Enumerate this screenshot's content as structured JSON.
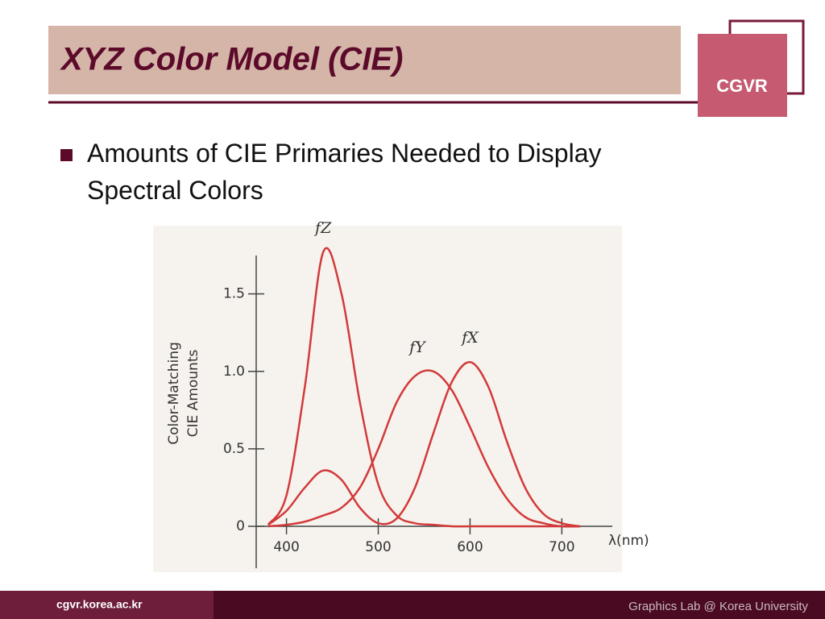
{
  "header": {
    "title": "XYZ Color Model (CIE)",
    "logo": "CGVR"
  },
  "bullets": [
    "Amounts of CIE Primaries Needed to Display Spectral Colors"
  ],
  "chart_data": {
    "type": "line",
    "x": [
      380,
      400,
      420,
      440,
      460,
      480,
      500,
      520,
      540,
      560,
      580,
      600,
      620,
      640,
      660,
      680,
      700,
      720
    ],
    "series": [
      {
        "name": "fZ",
        "color": "#d23a3a",
        "values": [
          0.01,
          0.2,
          0.9,
          1.77,
          1.5,
          0.8,
          0.27,
          0.07,
          0.02,
          0.01,
          0,
          0,
          0,
          0,
          0,
          0,
          0,
          0
        ]
      },
      {
        "name": "fY",
        "color": "#d23a3a",
        "values": [
          0,
          0.01,
          0.03,
          0.07,
          0.12,
          0.25,
          0.5,
          0.8,
          0.97,
          1.0,
          0.88,
          0.64,
          0.38,
          0.18,
          0.06,
          0.02,
          0,
          0
        ]
      },
      {
        "name": "fX",
        "color": "#d23a3a",
        "values": [
          0.01,
          0.1,
          0.25,
          0.36,
          0.3,
          0.12,
          0.02,
          0.05,
          0.25,
          0.6,
          0.93,
          1.06,
          0.9,
          0.55,
          0.25,
          0.08,
          0.02,
          0
        ]
      }
    ],
    "xlim": [
      367,
      755
    ],
    "ylim": [
      0,
      1.8
    ],
    "xticks": [
      400,
      500,
      600,
      700
    ],
    "yticks": [
      0,
      0.5,
      {
        "value": 1,
        "label": "1.0"
      },
      1.5
    ],
    "xlabel": "λ(nm)",
    "ylabel": [
      "Color-Matching",
      "CIE Amounts"
    ]
  },
  "footer": {
    "left": "cgvr.korea.ac.kr",
    "right": "Graphics Lab @ Korea University"
  }
}
